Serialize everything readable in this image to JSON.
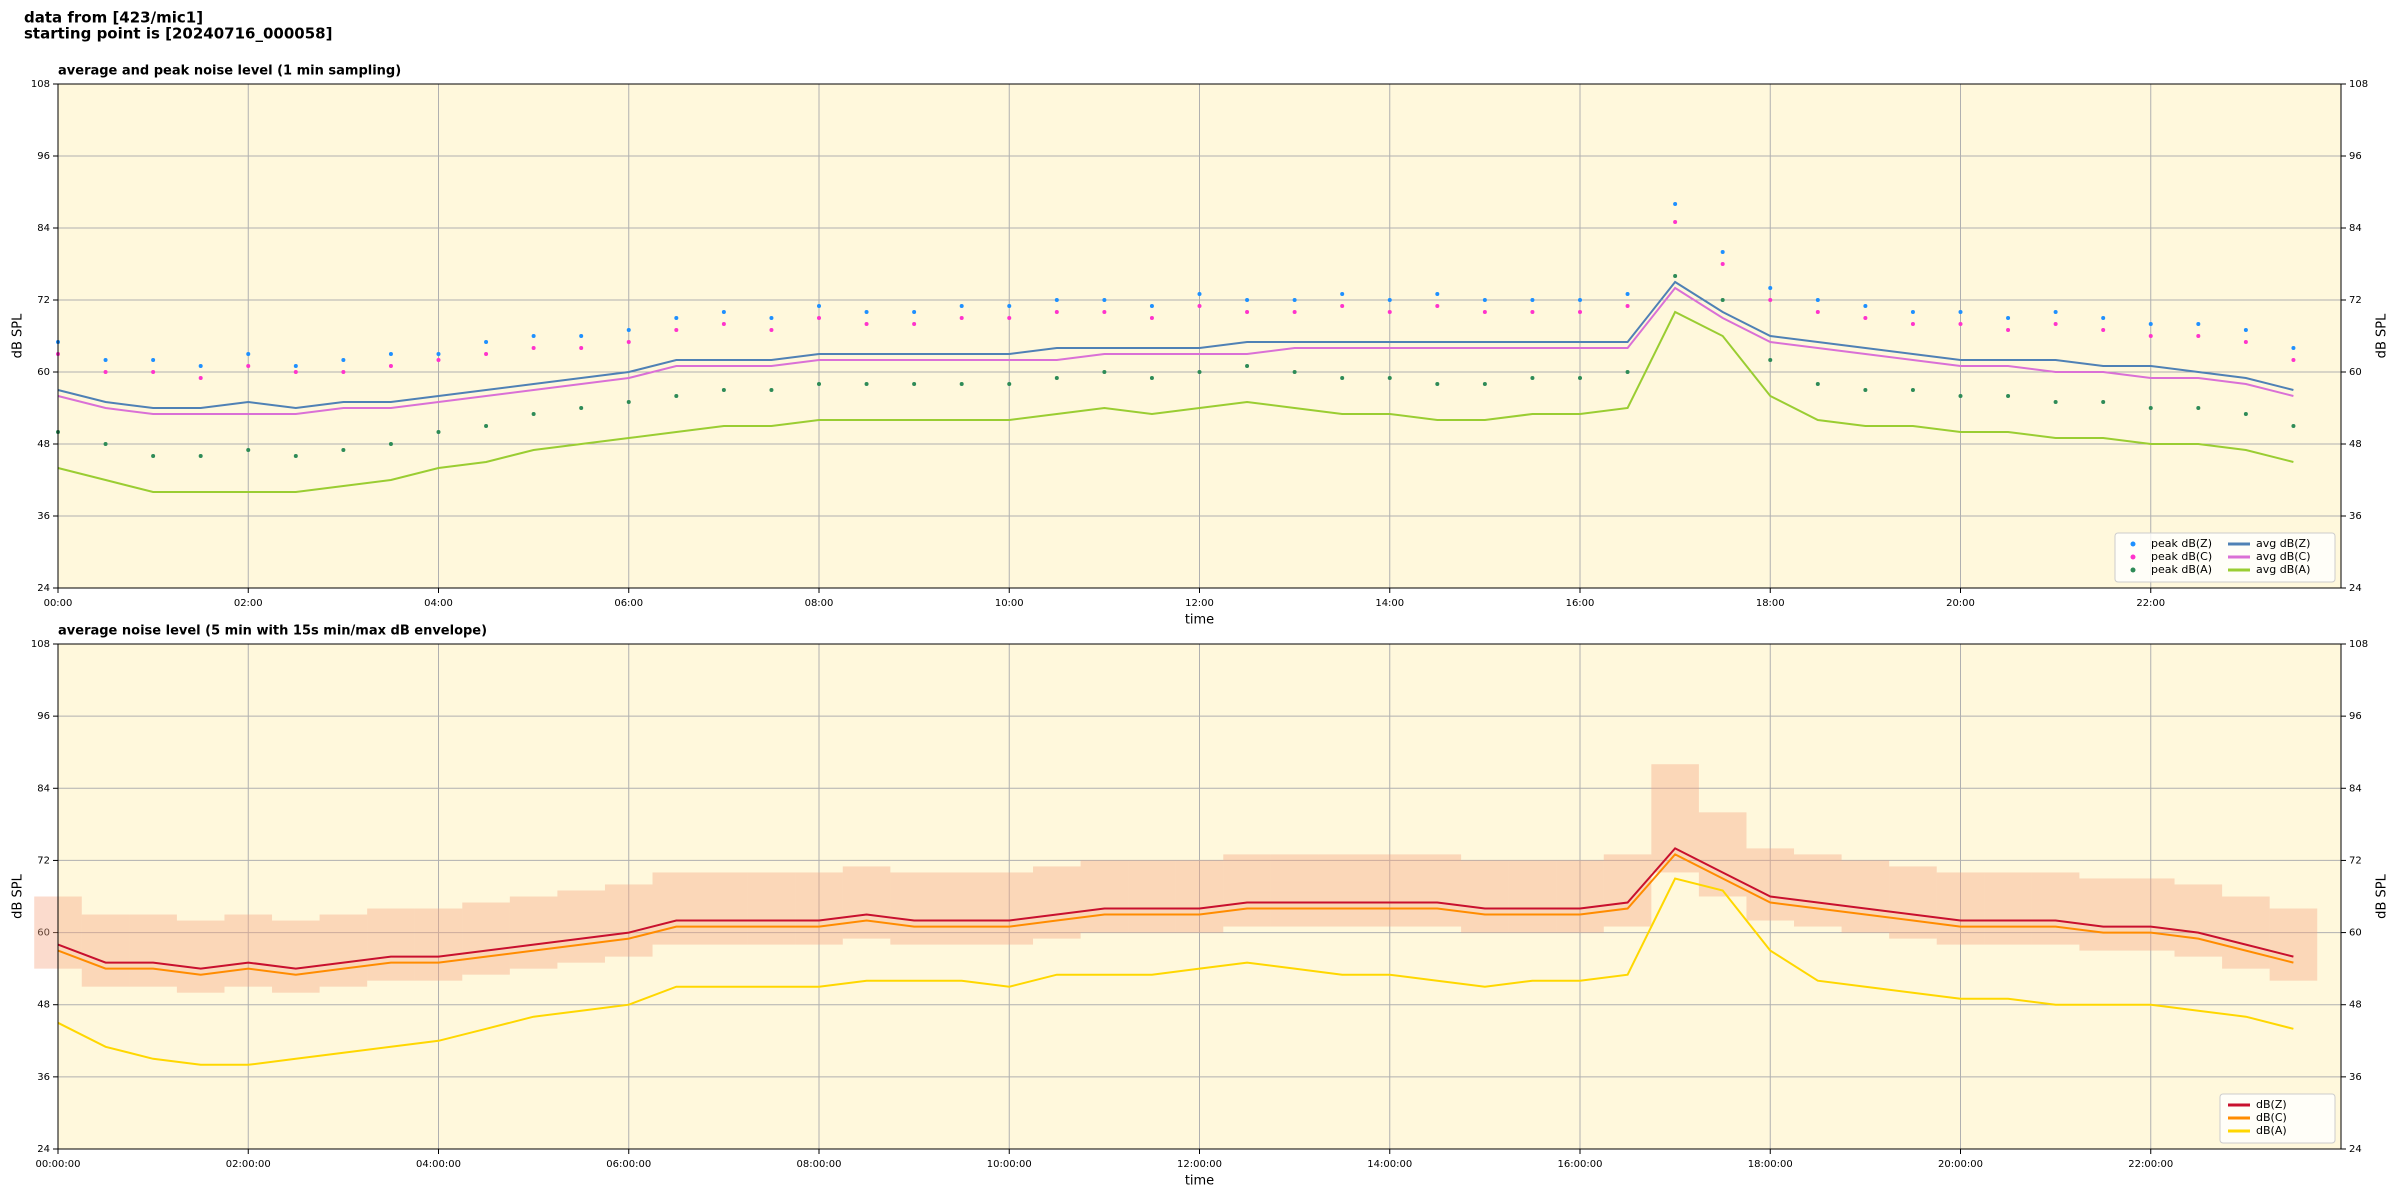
{
  "header": {
    "lines": [
      "data from [423/mic1]",
      "starting point is [20240716_000058]"
    ]
  },
  "chart_data": [
    {
      "type": "line",
      "title": "average and peak noise level (1 min sampling)",
      "x_label": "time",
      "y_label": "dB SPL",
      "x": [
        0,
        0.5,
        1,
        1.5,
        2,
        2.5,
        3,
        3.5,
        4,
        4.5,
        5,
        5.5,
        6,
        6.5,
        7,
        7.5,
        8,
        8.5,
        9,
        9.5,
        10,
        10.5,
        11,
        11.5,
        12,
        12.5,
        13,
        13.5,
        14,
        14.5,
        15,
        15.5,
        16,
        16.5,
        17,
        17.5,
        18,
        18.5,
        19,
        19.5,
        20,
        20.5,
        21,
        21.5,
        22,
        22.5,
        23,
        23.5
      ],
      "xlim": [
        0,
        24
      ],
      "xticks": [
        {
          "value": 0,
          "label": "00:00"
        },
        {
          "value": 2,
          "label": "02:00"
        },
        {
          "value": 4,
          "label": "04:00"
        },
        {
          "value": 6,
          "label": "06:00"
        },
        {
          "value": 8,
          "label": "08:00"
        },
        {
          "value": 10,
          "label": "10:00"
        },
        {
          "value": 12,
          "label": "12:00"
        },
        {
          "value": 14,
          "label": "14:00"
        },
        {
          "value": 16,
          "label": "16:00"
        },
        {
          "value": 18,
          "label": "18:00"
        },
        {
          "value": 20,
          "label": "20:00"
        },
        {
          "value": 22,
          "label": "22:00"
        }
      ],
      "ylim": [
        24,
        108
      ],
      "yticks": [
        24,
        36,
        48,
        60,
        72,
        84,
        96,
        108
      ],
      "grid": true,
      "legend": "lower right",
      "legend_columns": 2,
      "background": "#fff8dc",
      "series": [
        {
          "name": "peak dB(Z)",
          "type": "scatter",
          "color": "#1e90ff",
          "values": [
            65,
            62,
            62,
            61,
            63,
            61,
            62,
            63,
            63,
            65,
            66,
            66,
            67,
            69,
            70,
            69,
            71,
            70,
            70,
            71,
            71,
            72,
            72,
            71,
            73,
            72,
            72,
            73,
            72,
            73,
            72,
            72,
            72,
            73,
            88,
            80,
            74,
            72,
            71,
            70,
            70,
            69,
            70,
            69,
            68,
            68,
            67,
            64
          ]
        },
        {
          "name": "peak dB(C)",
          "type": "scatter",
          "color": "#ff33cc",
          "values": [
            63,
            60,
            60,
            59,
            61,
            60,
            60,
            61,
            62,
            63,
            64,
            64,
            65,
            67,
            68,
            67,
            69,
            68,
            68,
            69,
            69,
            70,
            70,
            69,
            71,
            70,
            70,
            71,
            70,
            71,
            70,
            70,
            70,
            71,
            85,
            78,
            72,
            70,
            69,
            68,
            68,
            67,
            68,
            67,
            66,
            66,
            65,
            62
          ]
        },
        {
          "name": "peak dB(A)",
          "type": "scatter",
          "color": "#2e8b57",
          "values": [
            50,
            48,
            46,
            46,
            47,
            46,
            47,
            48,
            50,
            51,
            53,
            54,
            55,
            56,
            57,
            57,
            58,
            58,
            58,
            58,
            58,
            59,
            60,
            59,
            60,
            61,
            60,
            59,
            59,
            58,
            58,
            59,
            59,
            60,
            76,
            72,
            62,
            58,
            57,
            57,
            56,
            56,
            55,
            55,
            54,
            54,
            53,
            51
          ]
        },
        {
          "name": "avg dB(Z)",
          "type": "line",
          "color": "#4f81b5",
          "values": [
            57,
            55,
            54,
            54,
            55,
            54,
            55,
            55,
            56,
            57,
            58,
            59,
            60,
            62,
            62,
            62,
            63,
            63,
            63,
            63,
            63,
            64,
            64,
            64,
            64,
            65,
            65,
            65,
            65,
            65,
            65,
            65,
            65,
            65,
            75,
            70,
            66,
            65,
            64,
            63,
            62,
            62,
            62,
            61,
            61,
            60,
            59,
            57
          ]
        },
        {
          "name": "avg dB(C)",
          "type": "line",
          "color": "#da70d6",
          "values": [
            56,
            54,
            53,
            53,
            53,
            53,
            54,
            54,
            55,
            56,
            57,
            58,
            59,
            61,
            61,
            61,
            62,
            62,
            62,
            62,
            62,
            62,
            63,
            63,
            63,
            63,
            64,
            64,
            64,
            64,
            64,
            64,
            64,
            64,
            74,
            69,
            65,
            64,
            63,
            62,
            61,
            61,
            60,
            60,
            59,
            59,
            58,
            56
          ]
        },
        {
          "name": "avg dB(A)",
          "type": "line",
          "color": "#9acd32",
          "values": [
            44,
            42,
            40,
            40,
            40,
            40,
            41,
            42,
            44,
            45,
            47,
            48,
            49,
            50,
            51,
            51,
            52,
            52,
            52,
            52,
            52,
            53,
            54,
            53,
            54,
            55,
            54,
            53,
            53,
            52,
            52,
            53,
            53,
            54,
            70,
            66,
            56,
            52,
            51,
            51,
            50,
            50,
            49,
            49,
            48,
            48,
            47,
            45
          ]
        }
      ]
    },
    {
      "type": "line",
      "title": "average noise level (5 min with 15s min/max dB envelope)",
      "x_label": "time",
      "y_label": "dB SPL",
      "x": [
        0,
        0.5,
        1,
        1.5,
        2,
        2.5,
        3,
        3.5,
        4,
        4.5,
        5,
        5.5,
        6,
        6.5,
        7,
        7.5,
        8,
        8.5,
        9,
        9.5,
        10,
        10.5,
        11,
        11.5,
        12,
        12.5,
        13,
        13.5,
        14,
        14.5,
        15,
        15.5,
        16,
        16.5,
        17,
        17.5,
        18,
        18.5,
        19,
        19.5,
        20,
        20.5,
        21,
        21.5,
        22,
        22.5,
        23,
        23.5
      ],
      "xlim": [
        0,
        24
      ],
      "xticks": [
        {
          "value": 0,
          "label": "00:00:00"
        },
        {
          "value": 2,
          "label": "02:00:00"
        },
        {
          "value": 4,
          "label": "04:00:00"
        },
        {
          "value": 6,
          "label": "06:00:00"
        },
        {
          "value": 8,
          "label": "08:00:00"
        },
        {
          "value": 10,
          "label": "10:00:00"
        },
        {
          "value": 12,
          "label": "12:00:00"
        },
        {
          "value": 14,
          "label": "14:00:00"
        },
        {
          "value": 16,
          "label": "16:00:00"
        },
        {
          "value": 18,
          "label": "18:00:00"
        },
        {
          "value": 20,
          "label": "20:00:00"
        },
        {
          "value": 22,
          "label": "22:00:00"
        }
      ],
      "ylim": [
        24,
        108
      ],
      "yticks": [
        24,
        36,
        48,
        60,
        72,
        84,
        96,
        108
      ],
      "grid": true,
      "legend": "lower right",
      "legend_columns": 1,
      "background": "#fff8dc",
      "envelope": {
        "color": "#f4a582",
        "low": [
          54,
          51,
          51,
          50,
          51,
          50,
          51,
          52,
          52,
          53,
          54,
          55,
          56,
          58,
          58,
          58,
          58,
          59,
          58,
          58,
          58,
          59,
          60,
          60,
          60,
          61,
          61,
          61,
          61,
          61,
          60,
          60,
          60,
          61,
          70,
          66,
          62,
          61,
          60,
          59,
          58,
          58,
          58,
          57,
          57,
          56,
          54,
          52
        ],
        "high": [
          66,
          63,
          63,
          62,
          63,
          62,
          63,
          64,
          64,
          65,
          66,
          67,
          68,
          70,
          70,
          70,
          70,
          71,
          70,
          70,
          70,
          71,
          72,
          72,
          72,
          73,
          73,
          73,
          73,
          73,
          72,
          72,
          72,
          73,
          88,
          80,
          74,
          73,
          72,
          71,
          70,
          70,
          70,
          69,
          69,
          68,
          66,
          64
        ]
      },
      "series": [
        {
          "name": "dB(Z)",
          "type": "line",
          "color": "#c8102e",
          "values": [
            58,
            55,
            55,
            54,
            55,
            54,
            55,
            56,
            56,
            57,
            58,
            59,
            60,
            62,
            62,
            62,
            62,
            63,
            62,
            62,
            62,
            63,
            64,
            64,
            64,
            65,
            65,
            65,
            65,
            65,
            64,
            64,
            64,
            65,
            74,
            70,
            66,
            65,
            64,
            63,
            62,
            62,
            62,
            61,
            61,
            60,
            58,
            56
          ]
        },
        {
          "name": "dB(C)",
          "type": "line",
          "color": "#ff8c00",
          "values": [
            57,
            54,
            54,
            53,
            54,
            53,
            54,
            55,
            55,
            56,
            57,
            58,
            59,
            61,
            61,
            61,
            61,
            62,
            61,
            61,
            61,
            62,
            63,
            63,
            63,
            64,
            64,
            64,
            64,
            64,
            63,
            63,
            63,
            64,
            73,
            69,
            65,
            64,
            63,
            62,
            61,
            61,
            61,
            60,
            60,
            59,
            57,
            55
          ]
        },
        {
          "name": "dB(A)",
          "type": "line",
          "color": "#ffd700",
          "values": [
            45,
            41,
            39,
            38,
            38,
            39,
            40,
            41,
            42,
            44,
            46,
            47,
            48,
            51,
            51,
            51,
            51,
            52,
            52,
            52,
            51,
            53,
            53,
            53,
            54,
            55,
            54,
            53,
            53,
            52,
            51,
            52,
            52,
            53,
            69,
            67,
            57,
            52,
            51,
            50,
            49,
            49,
            48,
            48,
            48,
            47,
            46,
            44
          ]
        }
      ]
    }
  ]
}
